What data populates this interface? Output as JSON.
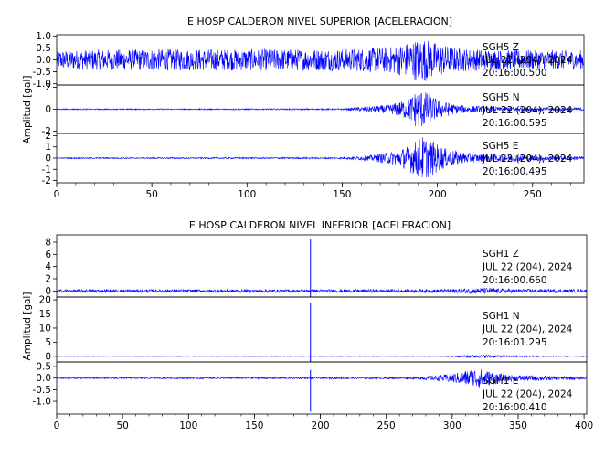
{
  "chart_data": [
    {
      "type": "line",
      "title": "E HOSP CALDERON NIVEL SUPERIOR [ACELERACION]",
      "ylabel": "Amplitud [gal]",
      "xlabel": "",
      "xlim": [
        0,
        277
      ],
      "xticks": [
        0,
        50,
        100,
        150,
        200,
        250
      ],
      "grid": false,
      "line_color": "#0000ff",
      "series": [
        {
          "name": "",
          "station": "SGH5",
          "component": "Z",
          "date_line": "JUL 22 (204), 2024",
          "time_line": "20:16:00.500",
          "ylim": [
            -1.05,
            1.05
          ],
          "yticks": [
            "1.0",
            "0.5",
            "0.0",
            "-0.5",
            "-1.0"
          ],
          "ytick_values": [
            1.0,
            0.5,
            0.0,
            -0.5,
            -1.0
          ],
          "envelope": [
            [
              0,
              0.4
            ],
            [
              10,
              0.42
            ],
            [
              50,
              0.45
            ],
            [
              100,
              0.45
            ],
            [
              150,
              0.46
            ],
            [
              175,
              0.55
            ],
            [
              185,
              0.75
            ],
            [
              192,
              0.95
            ],
            [
              200,
              0.7
            ],
            [
              210,
              0.5
            ],
            [
              230,
              0.42
            ],
            [
              277,
              0.4
            ]
          ]
        },
        {
          "name": "",
          "station": "SGH5",
          "component": "N",
          "date_line": "JUL 22 (204), 2024",
          "time_line": "20:16:00.595",
          "ylim": [
            -2.2,
            2.2
          ],
          "yticks": [
            "2",
            "0",
            "-2"
          ],
          "ytick_values": [
            2,
            0,
            -2
          ],
          "envelope": [
            [
              0,
              0.05
            ],
            [
              150,
              0.06
            ],
            [
              160,
              0.2
            ],
            [
              175,
              0.4
            ],
            [
              185,
              1.0
            ],
            [
              190,
              1.9
            ],
            [
              195,
              1.5
            ],
            [
              200,
              0.9
            ],
            [
              210,
              0.4
            ],
            [
              230,
              0.2
            ],
            [
              277,
              0.15
            ]
          ]
        },
        {
          "name": "",
          "station": "SGH5",
          "component": "E",
          "date_line": "JUL 22 (204), 2024",
          "time_line": "20:16:00.495",
          "ylim": [
            -2.2,
            2.2
          ],
          "yticks": [
            "2",
            "1",
            "0",
            "-1",
            "-2"
          ],
          "ytick_values": [
            2,
            1,
            0,
            -1,
            -2
          ],
          "envelope": [
            [
              0,
              0.05
            ],
            [
              150,
              0.07
            ],
            [
              165,
              0.25
            ],
            [
              180,
              0.7
            ],
            [
              188,
              1.5
            ],
            [
              192,
              2.0
            ],
            [
              197,
              1.6
            ],
            [
              205,
              0.8
            ],
            [
              220,
              0.35
            ],
            [
              277,
              0.15
            ]
          ]
        }
      ]
    },
    {
      "type": "line",
      "title": "E HOSP CALDERON NIVEL INFERIOR [ACELERACION]",
      "ylabel": "Amplitud [gal]",
      "xlabel": "",
      "xlim": [
        0,
        402
      ],
      "xticks": [
        0,
        50,
        100,
        150,
        200,
        250,
        300,
        350,
        400
      ],
      "grid": false,
      "line_color": "#0000ff",
      "series": [
        {
          "name": "",
          "station": "SGH1",
          "component": "Z",
          "date_line": "JUL 22 (204), 2024",
          "time_line": "20:16:00.660",
          "ylim": [
            -1,
            9.2
          ],
          "yticks": [
            "8",
            "6",
            "4",
            "2",
            "0"
          ],
          "ytick_values": [
            8,
            6,
            4,
            2,
            0
          ],
          "envelope": [
            [
              0,
              0.25
            ],
            [
              180,
              0.25
            ],
            [
              290,
              0.28
            ],
            [
              310,
              0.4
            ],
            [
              325,
              0.5
            ],
            [
              340,
              0.35
            ],
            [
              402,
              0.25
            ]
          ],
          "spike": {
            "x": 192.5,
            "min": -1.2,
            "max": 8.6
          }
        },
        {
          "name": "",
          "station": "SGH1",
          "component": "N",
          "date_line": "JUL 22 (204), 2024",
          "time_line": "20:16:01.295",
          "ylim": [
            -2,
            21
          ],
          "yticks": [
            "20",
            "15",
            "10",
            "5",
            "0"
          ],
          "ytick_values": [
            20,
            15,
            10,
            5,
            0
          ],
          "envelope": [
            [
              0,
              0.08
            ],
            [
              290,
              0.1
            ],
            [
              310,
              0.4
            ],
            [
              325,
              0.55
            ],
            [
              345,
              0.3
            ],
            [
              402,
              0.15
            ]
          ],
          "spike": {
            "x": 192.5,
            "min": -2,
            "max": 19
          }
        },
        {
          "name": "",
          "station": "SGH1",
          "component": "E",
          "date_line": "JUL 22 (204), 2024",
          "time_line": "20:16:00.410",
          "ylim": [
            -1.55,
            0.7
          ],
          "yticks": [
            "0.5",
            "0.0",
            "-0.5",
            "-1.0"
          ],
          "ytick_values": [
            0.5,
            0.0,
            -0.5,
            -1.0
          ],
          "envelope": [
            [
              0,
              0.03
            ],
            [
              270,
              0.04
            ],
            [
              290,
              0.12
            ],
            [
              305,
              0.25
            ],
            [
              318,
              0.45
            ],
            [
              325,
              0.35
            ],
            [
              340,
              0.15
            ],
            [
              402,
              0.05
            ]
          ],
          "spike": {
            "x": 192.5,
            "min": -1.45,
            "max": 0.35
          }
        }
      ]
    }
  ]
}
